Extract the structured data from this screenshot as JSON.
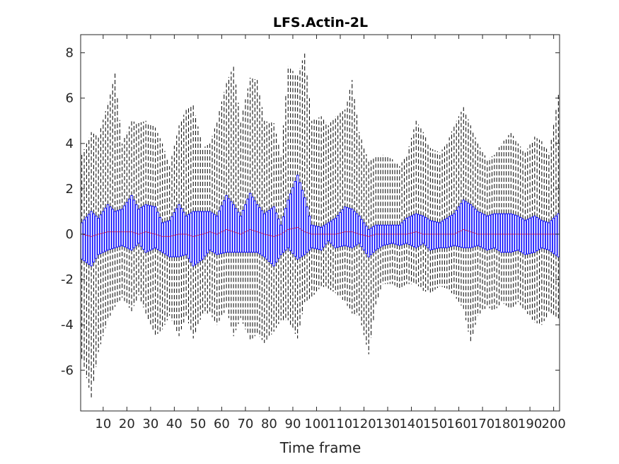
{
  "chart_data": {
    "type": "box",
    "title": "LFS.Actin-2L",
    "xlabel": "Time frame",
    "ylabel": "",
    "xlim": [
      0.5,
      202.5
    ],
    "ylim": [
      -7.8,
      8.8
    ],
    "x_ticks": [
      10,
      20,
      30,
      40,
      50,
      60,
      70,
      80,
      90,
      100,
      110,
      120,
      130,
      140,
      150,
      160,
      170,
      180,
      190,
      200
    ],
    "x_tick_labels": [
      "10",
      "20",
      "30",
      "40",
      "50",
      "60",
      "70",
      "80",
      "90",
      "100",
      "110",
      "120",
      "130",
      "140",
      "150",
      "160",
      "170",
      "180",
      "190",
      "200"
    ],
    "y_ticks": [
      -6,
      -4,
      -2,
      0,
      2,
      4,
      6,
      8
    ],
    "y_tick_labels": [
      "-6",
      "-4",
      "-2",
      "0",
      "2",
      "4",
      "6",
      "8"
    ],
    "grid": false,
    "n_frames": 202,
    "colors": {
      "box": "#0000ff",
      "whisker": "#000000",
      "median": "#ff0000"
    },
    "anchors": {
      "frame": [
        1,
        5,
        8,
        12,
        15,
        18,
        22,
        25,
        28,
        32,
        35,
        38,
        42,
        45,
        48,
        52,
        55,
        58,
        62,
        65,
        68,
        72,
        75,
        78,
        82,
        85,
        88,
        92,
        95,
        98,
        102,
        105,
        108,
        112,
        115,
        118,
        122,
        125,
        128,
        132,
        135,
        138,
        142,
        145,
        148,
        152,
        155,
        158,
        162,
        165,
        168,
        172,
        175,
        178,
        182,
        185,
        188,
        192,
        195,
        198,
        202
      ],
      "box_upper": [
        0.5,
        1.0,
        0.7,
        1.3,
        1.0,
        1.1,
        1.7,
        1.1,
        1.3,
        1.2,
        0.5,
        0.6,
        1.3,
        0.8,
        1.0,
        1.0,
        1.0,
        0.8,
        1.7,
        1.3,
        0.8,
        1.8,
        1.3,
        0.9,
        1.2,
        0.4,
        1.5,
        2.6,
        1.6,
        0.4,
        0.3,
        0.5,
        0.7,
        1.2,
        1.1,
        0.8,
        0.2,
        0.4,
        0.4,
        0.4,
        0.4,
        0.7,
        0.9,
        0.8,
        0.6,
        0.5,
        0.7,
        0.9,
        1.5,
        1.3,
        1.0,
        0.8,
        0.9,
        0.9,
        0.9,
        0.8,
        0.6,
        0.8,
        0.6,
        0.5,
        0.9
      ],
      "box_lower": [
        -1.1,
        -1.4,
        -0.9,
        -0.7,
        -0.6,
        -0.5,
        -0.7,
        -0.4,
        -0.8,
        -0.6,
        -0.8,
        -1.0,
        -1.0,
        -0.9,
        -1.4,
        -1.1,
        -0.7,
        -0.9,
        -0.8,
        -0.8,
        -0.8,
        -0.8,
        -0.8,
        -1.0,
        -1.4,
        -0.9,
        -0.6,
        -1.1,
        -0.9,
        -0.6,
        -0.7,
        -0.3,
        -0.6,
        -0.5,
        -0.6,
        -0.4,
        -1.0,
        -0.7,
        -0.5,
        -0.4,
        -0.5,
        -0.4,
        -0.6,
        -0.4,
        -0.7,
        -0.6,
        -0.6,
        -0.5,
        -0.6,
        -0.6,
        -0.5,
        -0.7,
        -0.6,
        -0.8,
        -0.8,
        -0.7,
        -0.9,
        -0.8,
        -0.6,
        -0.7,
        -1.0
      ],
      "whisk_upper": [
        3.5,
        4.5,
        4.3,
        5.8,
        7.1,
        4.0,
        5.0,
        4.9,
        5.0,
        4.7,
        4.0,
        3.0,
        4.8,
        5.5,
        5.7,
        3.8,
        4.0,
        5.0,
        6.7,
        7.4,
        5.0,
        6.9,
        6.8,
        5.0,
        4.9,
        3.5,
        7.4,
        7.0,
        8.0,
        5.0,
        5.2,
        4.8,
        5.2,
        5.5,
        6.8,
        4.5,
        3.2,
        3.4,
        3.5,
        3.3,
        3.0,
        3.5,
        5.0,
        4.5,
        3.8,
        3.6,
        4.0,
        4.8,
        5.6,
        4.8,
        4.0,
        3.3,
        3.5,
        4.0,
        4.5,
        4.0,
        3.6,
        4.3,
        4.1,
        3.6,
        6.2
      ],
      "whisk_lower": [
        -5.5,
        -7.2,
        -5.2,
        -3.8,
        -3.2,
        -2.8,
        -3.4,
        -2.7,
        -3.5,
        -4.5,
        -4.2,
        -3.6,
        -4.5,
        -3.6,
        -4.6,
        -3.5,
        -3.5,
        -4.0,
        -3.3,
        -4.5,
        -3.7,
        -4.7,
        -4.4,
        -4.8,
        -4.3,
        -3.8,
        -3.8,
        -4.6,
        -3.0,
        -2.8,
        -2.3,
        -2.4,
        -2.6,
        -3.0,
        -3.5,
        -3.6,
        -5.3,
        -3.1,
        -2.2,
        -2.2,
        -2.4,
        -2.2,
        -2.2,
        -2.5,
        -2.6,
        -2.3,
        -2.4,
        -2.7,
        -3.3,
        -4.8,
        -3.6,
        -3.2,
        -3.4,
        -3.0,
        -3.3,
        -3.0,
        -3.4,
        -3.9,
        -4.0,
        -3.5,
        -3.8
      ],
      "median": [
        0.0,
        -0.1,
        0.0,
        0.1,
        0.1,
        0.1,
        0.1,
        0.0,
        0.1,
        0.0,
        -0.1,
        -0.1,
        0.0,
        0.0,
        -0.1,
        0.0,
        0.1,
        0.0,
        0.2,
        0.1,
        0.0,
        0.2,
        0.1,
        0.0,
        -0.1,
        0.0,
        0.2,
        0.3,
        0.1,
        0.0,
        0.0,
        0.0,
        0.0,
        0.1,
        0.1,
        0.0,
        -0.1,
        0.0,
        0.0,
        0.0,
        0.0,
        0.0,
        0.1,
        0.0,
        0.0,
        0.0,
        0.0,
        0.0,
        0.2,
        0.1,
        0.0,
        0.0,
        0.0,
        0.0,
        0.0,
        0.0,
        0.0,
        0.0,
        0.0,
        0.0,
        0.0
      ]
    }
  }
}
